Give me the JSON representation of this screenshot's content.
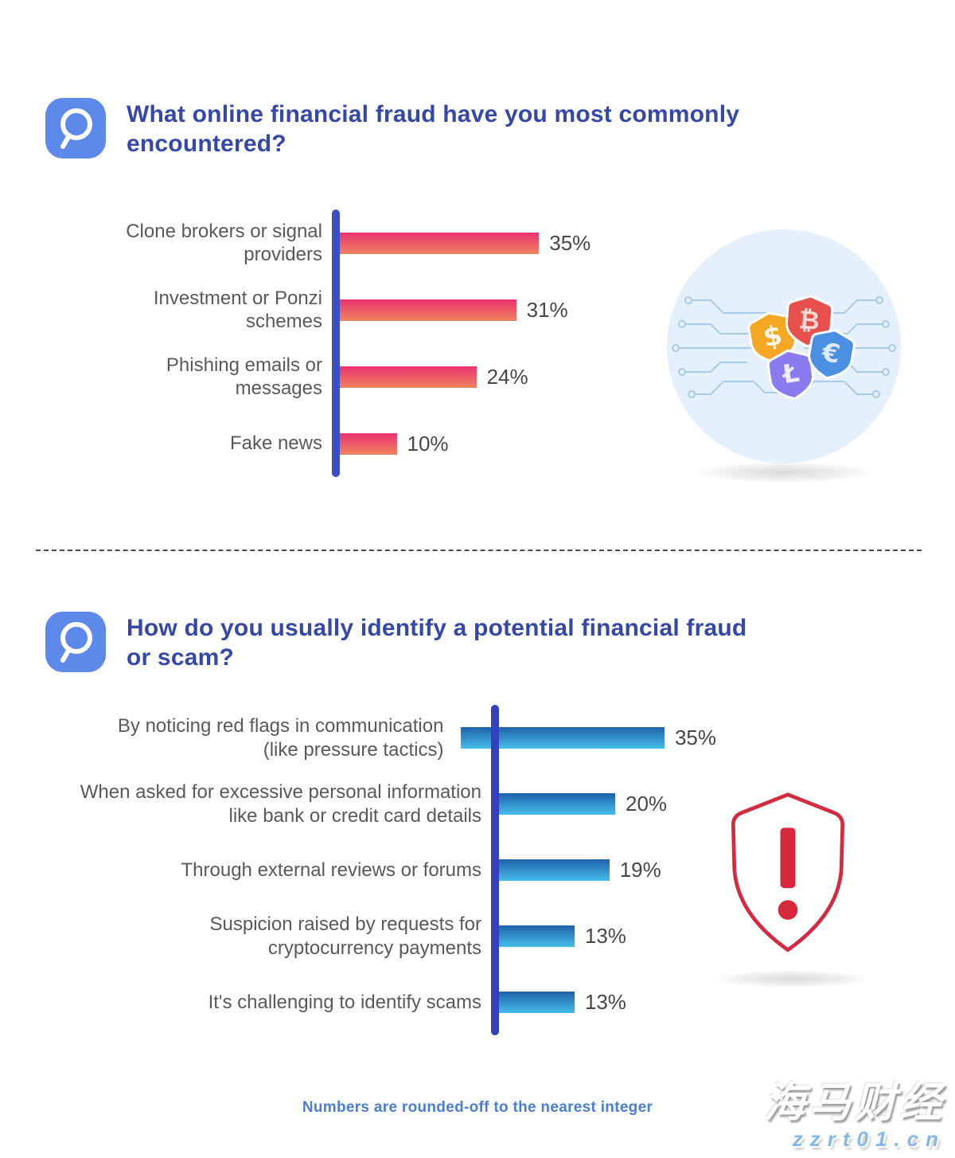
{
  "sections": [
    {
      "title": "What online financial fraud have you most commonly\nencountered?"
    },
    {
      "title": "How do you usually identify a potential financial fraud\nor scam?"
    }
  ],
  "chart_data": [
    {
      "type": "bar",
      "orientation": "horizontal",
      "title": "What online financial fraud have you most commonly encountered?",
      "unit": "%",
      "categories": [
        "Clone brokers or signal\nproviders",
        "Investment or Ponzi\nschemes",
        "Phishing emails or\nmessages",
        "Fake news"
      ],
      "values": [
        35,
        31,
        24,
        10
      ],
      "value_labels": [
        "35%",
        "31%",
        "24%",
        "10%"
      ],
      "bar_gradient": [
        "#E93370",
        "#F0835F"
      ],
      "axis_color": "#3C4EC2",
      "xlim": [
        0,
        40
      ],
      "grid": false,
      "legend": false
    },
    {
      "type": "bar",
      "orientation": "horizontal",
      "title": "How do you usually identify a potential financial fraud or scam?",
      "unit": "%",
      "categories": [
        "By noticing red flags in communication\n(like pressure tactics)",
        "When asked for excessive personal information\nlike bank or credit card details",
        "Through external reviews or forums",
        "Suspicion raised by requests for\ncryptocurrency payments",
        "It's challenging to identify scams"
      ],
      "values": [
        35,
        20,
        19,
        13,
        13
      ],
      "value_labels": [
        "35%",
        "20%",
        "19%",
        "13%",
        "13%"
      ],
      "bar_gradient": [
        "#1E61AA",
        "#47BEEA"
      ],
      "axis_color": "#3342BC",
      "xlim": [
        0,
        40
      ],
      "grid": false,
      "legend": false
    }
  ],
  "illustrations": {
    "currency_shields": {
      "name": "currency-shields-on-circuit",
      "symbols": {
        "dollar": "$",
        "bitcoin": "₿",
        "euro": "€",
        "litecoin": "Ł"
      },
      "shield_colors": {
        "dollar": "#F5A623",
        "bitcoin": "#E8504D",
        "euro": "#4A8FE2",
        "litecoin": "#8B7BF0"
      },
      "background_circle": "#E4F0FB",
      "circuit_color": "#A9CBE8"
    },
    "warning_shield": {
      "name": "red-warning-shield",
      "outline_color": "#D22B41",
      "mark_color": "#D8293C"
    }
  },
  "theme": {
    "title_color": "#3548A8",
    "question_icon_bg": "#5C89EA",
    "label_color": "#595959",
    "value_color": "#474747",
    "footnote_color": "#4A7ED2"
  },
  "footnote": "Numbers are rounded-off to the nearest integer",
  "watermark": {
    "line1": "海马财经",
    "line2": "zzrt01.cn"
  }
}
